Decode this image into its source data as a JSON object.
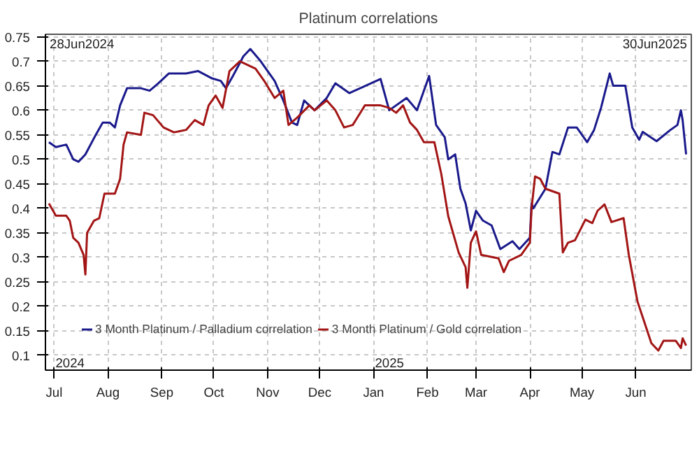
{
  "chart_data": {
    "type": "line",
    "title": "Platinum correlations",
    "xlim": [
      "2024-06-26",
      "2025-07-03"
    ],
    "xticks": [
      {
        "value": "2024-07-01",
        "label": "Jul"
      },
      {
        "value": "2024-08-01",
        "label": "Aug"
      },
      {
        "value": "2024-09-01",
        "label": "Sep"
      },
      {
        "value": "2024-10-01",
        "label": "Oct"
      },
      {
        "value": "2024-11-01",
        "label": "Nov"
      },
      {
        "value": "2024-12-01",
        "label": "Dec"
      },
      {
        "value": "2025-01-01",
        "label": "Jan"
      },
      {
        "value": "2025-02-01",
        "label": "Feb"
      },
      {
        "value": "2025-03-01",
        "label": "Mar"
      },
      {
        "value": "2025-04-01",
        "label": "Apr"
      },
      {
        "value": "2025-05-01",
        "label": "May"
      },
      {
        "value": "2025-06-01",
        "label": "Jun"
      }
    ],
    "ylim": [
      0.07,
      0.755
    ],
    "yticks": [
      0.1,
      0.15,
      0.2,
      0.25,
      0.3,
      0.35,
      0.4,
      0.45,
      0.5,
      0.55,
      0.6,
      0.65,
      0.7,
      0.75
    ],
    "grid": true,
    "legend": "bottom left",
    "line_style": "solid",
    "annotations": [
      "28Jun2024",
      "30Jun2025",
      "2024",
      "2025"
    ],
    "series": [
      {
        "name": "3 Month Platinum / Palladium correlation",
        "color": "#1a1a8c",
        "x": [
          "2024-06-28",
          "2024-07-02",
          "2024-07-08",
          "2024-07-12",
          "2024-07-15",
          "2024-07-19",
          "2024-07-25",
          "2024-07-29",
          "2024-08-02",
          "2024-08-05",
          "2024-08-08",
          "2024-08-12",
          "2024-08-20",
          "2024-08-25",
          "2024-08-30",
          "2024-09-05",
          "2024-09-15",
          "2024-09-22",
          "2024-09-30",
          "2024-10-05",
          "2024-10-08",
          "2024-10-12",
          "2024-10-18",
          "2024-10-22",
          "2024-10-28",
          "2024-11-05",
          "2024-11-10",
          "2024-11-15",
          "2024-11-18",
          "2024-11-22",
          "2024-11-28",
          "2024-12-05",
          "2024-12-10",
          "2024-12-18",
          "2025-01-05",
          "2025-01-10",
          "2025-01-20",
          "2025-01-26",
          "2025-02-02",
          "2025-02-06",
          "2025-02-11",
          "2025-02-13",
          "2025-02-17",
          "2025-02-20",
          "2025-02-23",
          "2025-02-26",
          "2025-03-01",
          "2025-03-05",
          "2025-03-10",
          "2025-03-15",
          "2025-03-22",
          "2025-03-26",
          "2025-04-01",
          "2025-04-02",
          "2025-04-03",
          "2025-04-10",
          "2025-04-14",
          "2025-04-18",
          "2025-04-23",
          "2025-04-28",
          "2025-05-04",
          "2025-05-08",
          "2025-05-12",
          "2025-05-17",
          "2025-05-19",
          "2025-05-26",
          "2025-05-30",
          "2025-06-03",
          "2025-06-05",
          "2025-06-13",
          "2025-06-21",
          "2025-06-25",
          "2025-06-27",
          "2025-06-28",
          "2025-06-30"
        ],
        "values": [
          0.535,
          0.525,
          0.53,
          0.5,
          0.495,
          0.51,
          0.55,
          0.575,
          0.575,
          0.565,
          0.61,
          0.645,
          0.645,
          0.64,
          0.655,
          0.675,
          0.675,
          0.68,
          0.665,
          0.66,
          0.645,
          0.67,
          0.71,
          0.725,
          0.7,
          0.66,
          0.62,
          0.575,
          0.57,
          0.62,
          0.6,
          0.625,
          0.655,
          0.635,
          0.664,
          0.6,
          0.625,
          0.6,
          0.67,
          0.57,
          0.545,
          0.5,
          0.51,
          0.44,
          0.41,
          0.355,
          0.395,
          0.375,
          0.365,
          0.317,
          0.333,
          0.317,
          0.34,
          0.41,
          0.4,
          0.44,
          0.515,
          0.51,
          0.565,
          0.565,
          0.535,
          0.56,
          0.605,
          0.675,
          0.65,
          0.65,
          0.565,
          0.54,
          0.556,
          0.537,
          0.56,
          0.57,
          0.6,
          0.58,
          0.51
        ]
      },
      {
        "name": "3 Month Platinum / Gold correlation",
        "color": "#a31515",
        "x": [
          "2024-06-28",
          "2024-07-02",
          "2024-07-08",
          "2024-07-10",
          "2024-07-12",
          "2024-07-15",
          "2024-07-18",
          "2024-07-19",
          "2024-07-20",
          "2024-07-24",
          "2024-07-27",
          "2024-07-30",
          "2024-08-05",
          "2024-08-08",
          "2024-08-10",
          "2024-08-12",
          "2024-08-20",
          "2024-08-22",
          "2024-08-27",
          "2024-09-02",
          "2024-09-08",
          "2024-09-15",
          "2024-09-20",
          "2024-09-25",
          "2024-09-28",
          "2024-10-02",
          "2024-10-06",
          "2024-10-10",
          "2024-10-16",
          "2024-10-25",
          "2024-10-30",
          "2024-11-05",
          "2024-11-10",
          "2024-11-13",
          "2024-11-18",
          "2024-11-25",
          "2024-11-28",
          "2024-12-05",
          "2024-12-10",
          "2024-12-15",
          "2024-12-20",
          "2024-12-27",
          "2025-01-05",
          "2025-01-10",
          "2025-01-14",
          "2025-01-18",
          "2025-01-22",
          "2025-01-26",
          "2025-01-30",
          "2025-02-05",
          "2025-02-09",
          "2025-02-13",
          "2025-02-19",
          "2025-02-23",
          "2025-02-24",
          "2025-02-26",
          "2025-03-01",
          "2025-03-04",
          "2025-03-14",
          "2025-03-17",
          "2025-03-20",
          "2025-03-27",
          "2025-04-01",
          "2025-04-02",
          "2025-04-04",
          "2025-04-07",
          "2025-04-10",
          "2025-04-18",
          "2025-04-20",
          "2025-04-23",
          "2025-04-27",
          "2025-05-03",
          "2025-05-07",
          "2025-05-10",
          "2025-05-14",
          "2025-05-18",
          "2025-05-25",
          "2025-05-28",
          "2025-06-02",
          "2025-06-05",
          "2025-06-10",
          "2025-06-14",
          "2025-06-17",
          "2025-06-24",
          "2025-06-27",
          "2025-06-28",
          "2025-06-30"
        ],
        "values": [
          0.41,
          0.385,
          0.385,
          0.375,
          0.34,
          0.33,
          0.305,
          0.265,
          0.35,
          0.375,
          0.38,
          0.43,
          0.43,
          0.46,
          0.53,
          0.555,
          0.55,
          0.595,
          0.59,
          0.565,
          0.555,
          0.56,
          0.58,
          0.57,
          0.61,
          0.63,
          0.605,
          0.68,
          0.7,
          0.685,
          0.66,
          0.625,
          0.64,
          0.57,
          0.585,
          0.61,
          0.6,
          0.62,
          0.6,
          0.565,
          0.57,
          0.61,
          0.61,
          0.605,
          0.595,
          0.61,
          0.575,
          0.56,
          0.535,
          0.535,
          0.47,
          0.384,
          0.31,
          0.28,
          0.238,
          0.33,
          0.353,
          0.305,
          0.298,
          0.27,
          0.293,
          0.305,
          0.33,
          0.4,
          0.465,
          0.46,
          0.44,
          0.43,
          0.31,
          0.33,
          0.335,
          0.377,
          0.37,
          0.395,
          0.408,
          0.372,
          0.38,
          0.305,
          0.21,
          0.178,
          0.125,
          0.11,
          0.13,
          0.13,
          0.115,
          0.135,
          0.12
        ]
      }
    ]
  }
}
